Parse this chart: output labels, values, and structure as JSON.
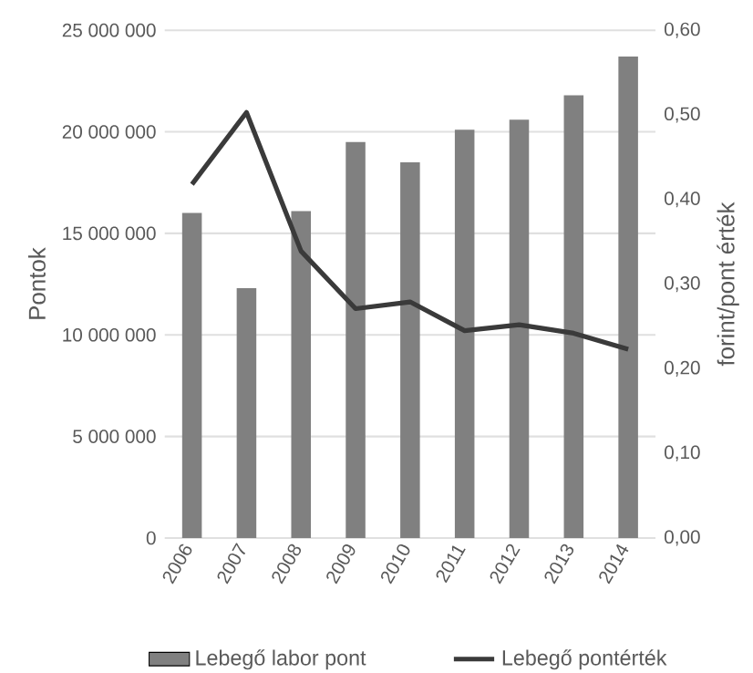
{
  "chart_data": {
    "type": "bar",
    "ylabel": "Pontok",
    "y2label": "forint/pont érték",
    "categories": [
      "2006",
      "2007",
      "2008",
      "2009",
      "2010",
      "2011",
      "2012",
      "2013",
      "2014"
    ],
    "series": [
      {
        "name": "Lebegő labor pont",
        "color": "#808080",
        "values": [
          16000000,
          12300000,
          16100000,
          19500000,
          18500000,
          20100000,
          20600000,
          21800000,
          23700000
        ]
      },
      {
        "name": "Lebegő pontérték",
        "type": "line",
        "axis": "y2",
        "color": "#3a3a3a",
        "values": [
          0.418,
          0.503,
          0.339,
          0.271,
          0.279,
          0.245,
          0.252,
          0.242,
          0.223
        ]
      }
    ],
    "ylim": [
      0,
      25000000
    ],
    "yticks": [
      {
        "value": 0,
        "label": "0"
      },
      {
        "value": 5000000,
        "label": "5 000 000"
      },
      {
        "value": 10000000,
        "label": "10 000 000"
      },
      {
        "value": 15000000,
        "label": "15 000 000"
      },
      {
        "value": 20000000,
        "label": "20 000 000"
      },
      {
        "value": 25000000,
        "label": "25 000 000"
      }
    ],
    "y2lim": [
      0,
      0.6
    ],
    "y2ticks": [
      {
        "value": 0,
        "label": "0,00"
      },
      {
        "value": 0.1,
        "label": "0,10"
      },
      {
        "value": 0.2,
        "label": "0,20"
      },
      {
        "value": 0.3,
        "label": "0,30"
      },
      {
        "value": 0.4,
        "label": "0,40"
      },
      {
        "value": 0.5,
        "label": "0,50"
      },
      {
        "value": 0.6,
        "label": "0,60"
      }
    ],
    "grid": "y",
    "legend": "bottom"
  }
}
